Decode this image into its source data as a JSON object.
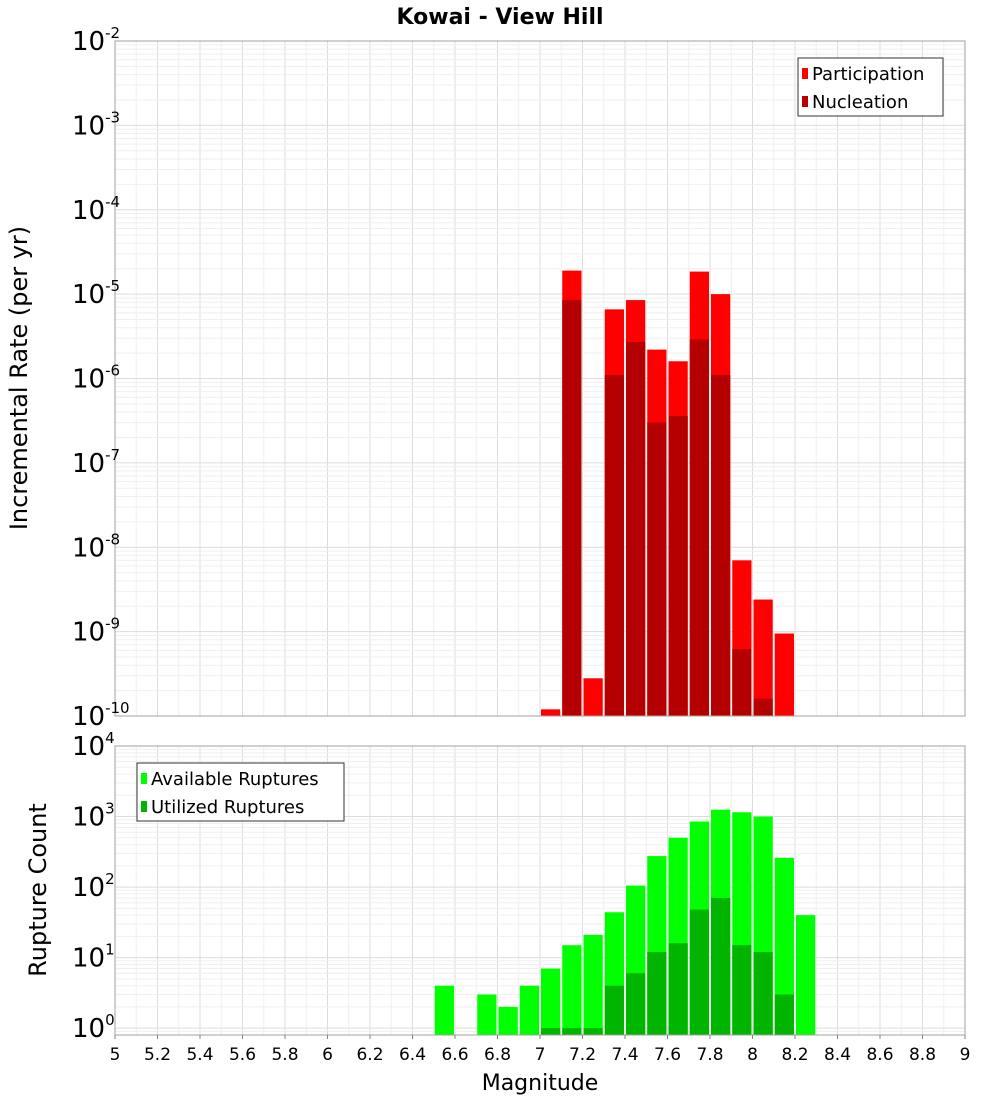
{
  "chart_data": [
    {
      "type": "bar",
      "title": "Kowai - View Hill",
      "ylabel": "Incremental Rate (per yr)",
      "xlabel": "",
      "xlim": [
        5,
        9
      ],
      "ylim": [
        1e-10,
        0.01
      ],
      "yscale": "log",
      "yticks": [
        {
          "base": "10",
          "exp": "-10"
        },
        {
          "base": "10",
          "exp": "-9"
        },
        {
          "base": "10",
          "exp": "-8"
        },
        {
          "base": "10",
          "exp": "-7"
        },
        {
          "base": "10",
          "exp": "-6"
        },
        {
          "base": "10",
          "exp": "-5"
        },
        {
          "base": "10",
          "exp": "-4"
        },
        {
          "base": "10",
          "exp": "-3"
        },
        {
          "base": "10",
          "exp": "-2"
        }
      ],
      "grid": true,
      "legend_position": "top-right",
      "bin_width": 0.1,
      "x": [
        7.05,
        7.15,
        7.25,
        7.35,
        7.45,
        7.55,
        7.65,
        7.75,
        7.85,
        7.95,
        8.05,
        8.15
      ],
      "series": [
        {
          "name": "Participation",
          "color": "#ff0000",
          "values": [
            1.2e-10,
            1.9e-05,
            2.8e-10,
            6.6e-06,
            8.5e-06,
            2.2e-06,
            1.6e-06,
            1.85e-05,
            1e-05,
            7e-09,
            2.4e-09,
            9.5e-10
          ]
        },
        {
          "name": "Nucleation",
          "color": "#b40000",
          "values": [
            null,
            8.5e-06,
            null,
            1.1e-06,
            2.7e-06,
            3e-07,
            3.6e-07,
            2.9e-06,
            1.1e-06,
            6.2e-10,
            1.6e-10,
            null
          ]
        }
      ]
    },
    {
      "type": "bar",
      "title": "",
      "ylabel": "Rupture Count",
      "xlabel": "Magnitude",
      "xlim": [
        5,
        9
      ],
      "ylim": [
        0.8,
        10000
      ],
      "yscale": "log",
      "yticks": [
        {
          "base": "10",
          "exp": "0"
        },
        {
          "base": "10",
          "exp": "1"
        },
        {
          "base": "10",
          "exp": "2"
        },
        {
          "base": "10",
          "exp": "3"
        },
        {
          "base": "10",
          "exp": "4"
        }
      ],
      "xticks": [
        "5",
        "5.2",
        "5.4",
        "5.6",
        "5.8",
        "6",
        "6.2",
        "6.4",
        "6.6",
        "6.8",
        "7",
        "7.2",
        "7.4",
        "7.6",
        "7.8",
        "8",
        "8.2",
        "8.4",
        "8.6",
        "8.8",
        "9"
      ],
      "grid": true,
      "legend_position": "top-left",
      "bin_width": 0.1,
      "x": [
        6.55,
        6.75,
        6.85,
        6.95,
        7.05,
        7.15,
        7.25,
        7.35,
        7.45,
        7.55,
        7.65,
        7.75,
        7.85,
        7.95,
        8.05,
        8.15,
        8.25
      ],
      "series": [
        {
          "name": "Available Ruptures",
          "color": "#00ff00",
          "values": [
            4,
            3,
            2,
            4,
            7,
            15,
            21,
            44,
            105,
            275,
            500,
            850,
            1250,
            1150,
            1000,
            260,
            40
          ]
        },
        {
          "name": "Utilized Ruptures",
          "color": "#00b400",
          "values": [
            null,
            null,
            null,
            null,
            1,
            1,
            1,
            4,
            6,
            12,
            16,
            48,
            70,
            15,
            12,
            3,
            null
          ]
        }
      ]
    }
  ]
}
